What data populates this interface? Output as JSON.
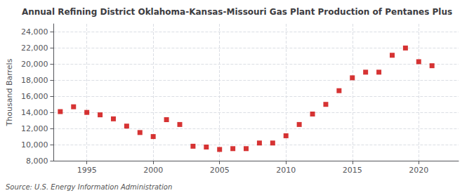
{
  "chart_data": {
    "type": "scatter",
    "title": "Annual Refining District Oklahoma-Kansas-Missouri Gas Plant Production of Pentanes Plus",
    "ylabel": "Thousand Barrels",
    "annotation": "Source: U.S. Energy Information Administration",
    "x": [
      1993,
      1994,
      1995,
      1996,
      1997,
      1998,
      1999,
      2000,
      2001,
      2002,
      2003,
      2004,
      2005,
      2006,
      2007,
      2008,
      2009,
      2010,
      2011,
      2012,
      2013,
      2014,
      2015,
      2016,
      2017,
      2018,
      2019,
      2020,
      2021
    ],
    "values": [
      14100,
      14700,
      14000,
      13700,
      13200,
      12300,
      11500,
      11000,
      13100,
      12500,
      9800,
      9700,
      9400,
      9500,
      9500,
      10200,
      10200,
      11100,
      12500,
      13800,
      15000,
      16700,
      18300,
      19000,
      19000,
      21100,
      22000,
      20300,
      19800
    ],
    "color": "#cc0000",
    "marker": "square",
    "xlim": [
      1992.5,
      2023
    ],
    "xticks": [
      1995,
      2000,
      2005,
      2010,
      2015,
      2020
    ],
    "ylim": [
      8000,
      25000
    ],
    "yticks": [
      {
        "value": 8000,
        "label": "8,000"
      },
      {
        "value": 10000,
        "label": "10,000"
      },
      {
        "value": 12000,
        "label": "12,000"
      },
      {
        "value": 14000,
        "label": "14,000"
      },
      {
        "value": 16000,
        "label": "16,000"
      },
      {
        "value": 18000,
        "label": "18,000"
      },
      {
        "value": 20000,
        "label": "20,000"
      },
      {
        "value": 22000,
        "label": "22,000"
      },
      {
        "value": 24000,
        "label": "24,000"
      }
    ],
    "grid": true
  }
}
